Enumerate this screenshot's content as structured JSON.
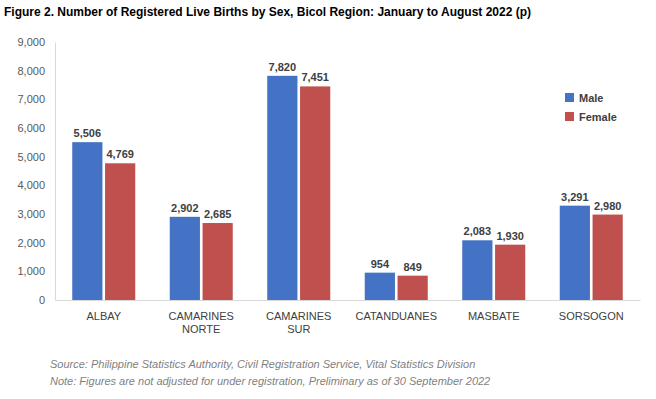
{
  "chart_data": {
    "type": "bar",
    "title": "Figure 2. Number of Registered Live Births by Sex, Bicol Region: January to August 2022 (p)",
    "categories": [
      "ALBAY",
      "CAMARINES NORTE",
      "CAMARINES SUR",
      "CATANDUANES",
      "MASBATE",
      "SORSOGON"
    ],
    "series": [
      {
        "name": "Male",
        "color": "#4472c4",
        "values": [
          5506,
          2902,
          7820,
          954,
          2083,
          3291
        ],
        "value_labels": [
          "5,506",
          "2,902",
          "7,820",
          "954",
          "2,083",
          "3,291"
        ]
      },
      {
        "name": "Female",
        "color": "#c0504d",
        "values": [
          4769,
          2685,
          7451,
          849,
          1930,
          2980
        ],
        "value_labels": [
          "4,769",
          "2,685",
          "7,451",
          "849",
          "1,930",
          "2,980"
        ]
      }
    ],
    "ylim": [
      0,
      9000
    ],
    "yticks": [
      0,
      {
        "value": 1000,
        "label": "1,000"
      },
      {
        "value": 2000,
        "label": "2,000"
      },
      {
        "value": 3000,
        "label": "3,000"
      },
      {
        "value": 4000,
        "label": "4,000"
      },
      {
        "value": 5000,
        "label": "5,000"
      },
      {
        "value": 6000,
        "label": "6,000"
      },
      {
        "value": 7000,
        "label": "7,000"
      },
      {
        "value": 8000,
        "label": "8,000"
      },
      {
        "value": 9000,
        "label": "9,000"
      }
    ],
    "grid": false,
    "legend": "upper right",
    "data_labels": true,
    "notes": [
      "Source: Philippine Statistics Authority, Civil Registration Service, Vital Statistics Division",
      "Note: Figures are not adjusted for under registration, Preliminary as of 30 September 2022"
    ]
  }
}
